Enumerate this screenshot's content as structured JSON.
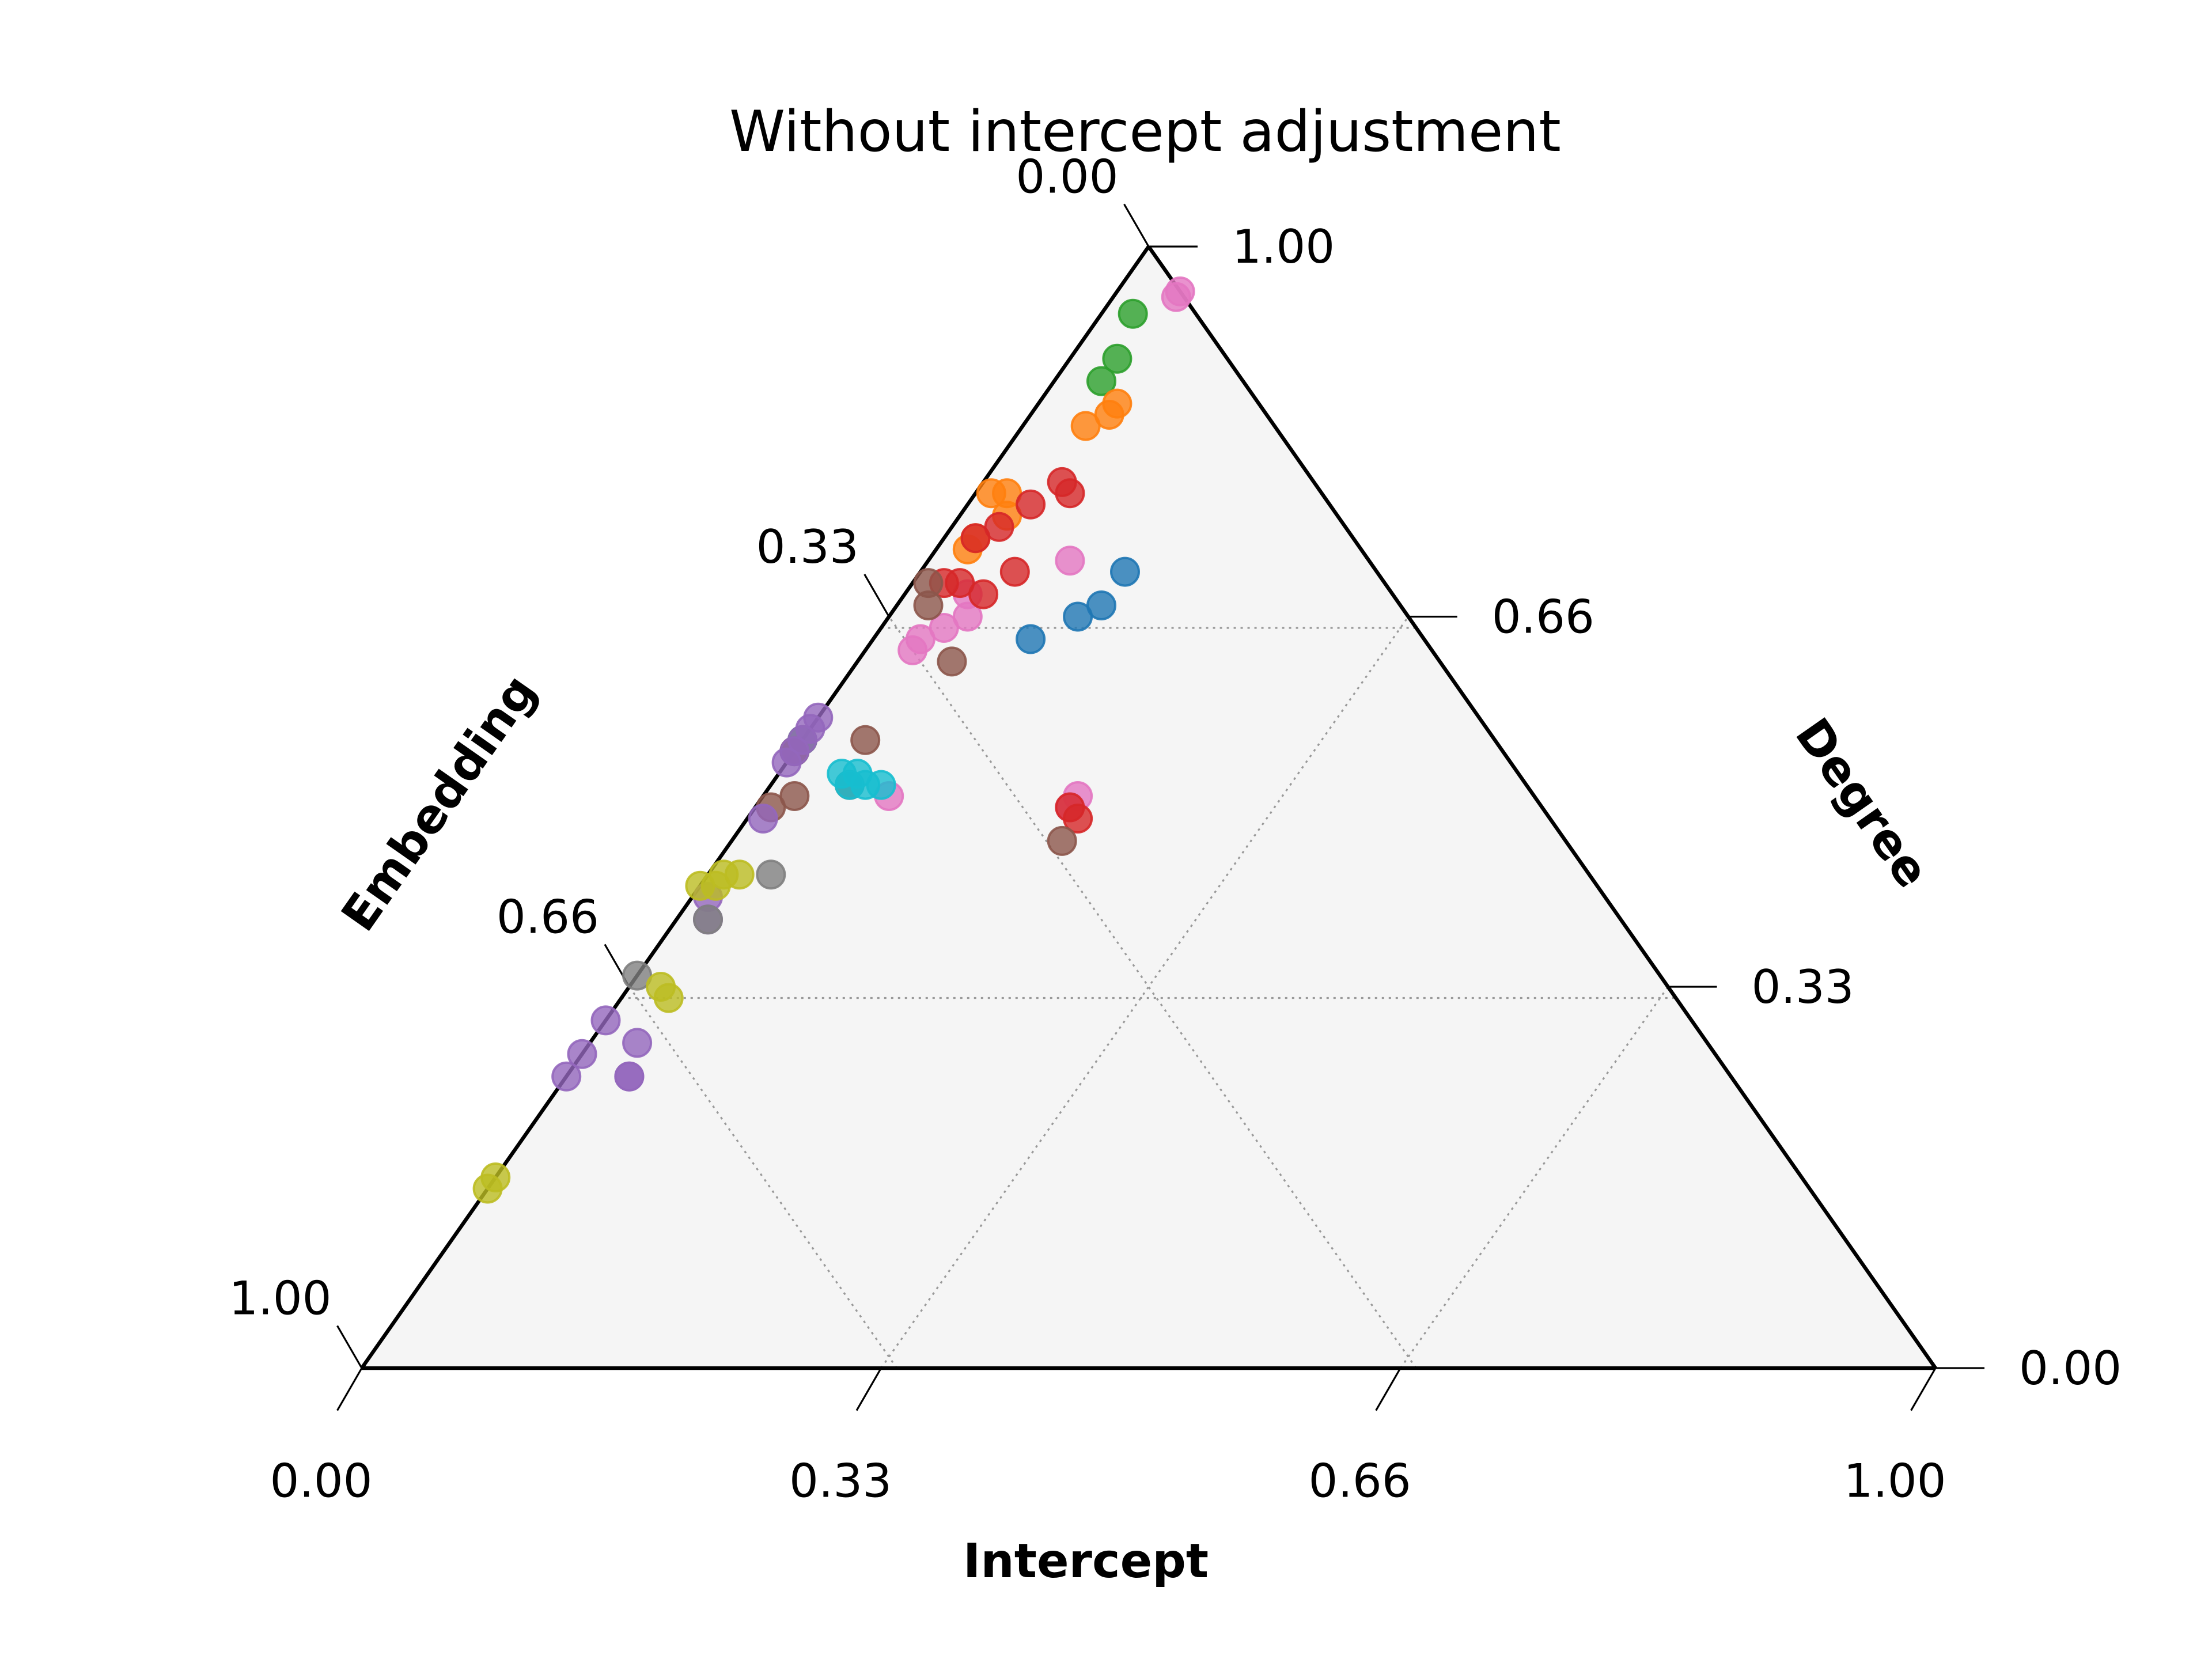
{
  "chart_data": {
    "type": "scatter",
    "subtype": "ternary",
    "title": "Without intercept adjustment",
    "axes": {
      "bottom": {
        "label": "Intercept",
        "ticks": [
          "0.00",
          "0.33",
          "0.66",
          "1.00"
        ]
      },
      "left": {
        "label": "Embedding",
        "ticks": [
          "0.00",
          "0.33",
          "0.66",
          "1.00"
        ]
      },
      "right": {
        "label": "Degree",
        "ticks": [
          "1.00",
          "0.66",
          "0.33",
          "0.00"
        ]
      }
    },
    "grid": true,
    "grid_levels": [
      0.33,
      0.66
    ],
    "background": "#f5f5f5",
    "legend": "none",
    "point_fields": [
      "intercept",
      "embedding",
      "degree"
    ],
    "series": [
      {
        "color": "#e377c2",
        "points": [
          [
            0.04,
            0.0,
            0.96
          ],
          [
            0.04,
            0.0,
            0.955
          ],
          [
            0.04,
            0.27,
            0.69
          ],
          [
            0.03,
            0.33,
            0.64
          ],
          [
            0.03,
            0.32,
            0.65
          ],
          [
            0.04,
            0.3,
            0.66
          ],
          [
            0.05,
            0.28,
            0.67
          ],
          [
            0.09,
            0.19,
            0.72
          ],
          [
            0.08,
            0.41,
            0.51
          ],
          [
            0.2,
            0.29,
            0.51
          ],
          [
            0.2,
            0.3,
            0.5
          ]
        ]
      },
      {
        "color": "#2ca02c",
        "points": [
          [
            0.02,
            0.04,
            0.94
          ],
          [
            0.03,
            0.07,
            0.9
          ],
          [
            0.03,
            0.09,
            0.88
          ],
          [
            0.0,
            0.44,
            0.56
          ],
          [
            0.0,
            0.45,
            0.55
          ]
        ]
      },
      {
        "color": "#ff7f0e",
        "points": [
          [
            0.05,
            0.09,
            0.86
          ],
          [
            0.05,
            0.1,
            0.85
          ],
          [
            0.04,
            0.12,
            0.84
          ],
          [
            0.02,
            0.24,
            0.74
          ],
          [
            0.01,
            0.21,
            0.78
          ],
          [
            0.02,
            0.2,
            0.78
          ],
          [
            0.03,
            0.21,
            0.76
          ],
          [
            0.02,
            0.25,
            0.73
          ]
        ]
      },
      {
        "color": "#d62728",
        "points": [
          [
            0.06,
            0.16,
            0.78
          ],
          [
            0.05,
            0.16,
            0.79
          ],
          [
            0.04,
            0.19,
            0.77
          ],
          [
            0.03,
            0.22,
            0.75
          ],
          [
            0.02,
            0.24,
            0.74
          ],
          [
            0.06,
            0.23,
            0.71
          ],
          [
            0.03,
            0.27,
            0.7
          ],
          [
            0.02,
            0.28,
            0.7
          ],
          [
            0.05,
            0.26,
            0.69
          ],
          [
            0.21,
            0.3,
            0.49
          ],
          [
            0.2,
            0.3,
            0.5
          ]
        ]
      },
      {
        "color": "#1f77b4",
        "points": [
          [
            0.13,
            0.16,
            0.71
          ],
          [
            0.13,
            0.19,
            0.68
          ],
          [
            0.12,
            0.21,
            0.67
          ],
          [
            0.1,
            0.25,
            0.65
          ]
        ]
      },
      {
        "color": "#8c564b",
        "points": [
          [
            0.01,
            0.29,
            0.7
          ],
          [
            0.02,
            0.3,
            0.68
          ],
          [
            0.06,
            0.31,
            0.63
          ],
          [
            0.04,
            0.4,
            0.56
          ],
          [
            0.05,
            0.43,
            0.52
          ],
          [
            0.02,
            0.47,
            0.51
          ],
          [
            0.01,
            0.49,
            0.5
          ],
          [
            0.0,
            0.45,
            0.55
          ],
          [
            0.21,
            0.32,
            0.47
          ]
        ]
      },
      {
        "color": "#17becf",
        "points": [
          [
            0.05,
            0.42,
            0.53
          ],
          [
            0.06,
            0.42,
            0.52
          ],
          [
            0.04,
            0.43,
            0.53
          ],
          [
            0.05,
            0.43,
            0.52
          ],
          [
            0.07,
            0.41,
            0.52
          ]
        ]
      },
      {
        "color": "#9467bd",
        "points": [
          [
            0.0,
            0.42,
            0.58
          ],
          [
            0.0,
            0.43,
            0.57
          ],
          [
            0.0,
            0.44,
            0.56
          ],
          [
            0.0,
            0.45,
            0.55
          ],
          [
            0.0,
            0.46,
            0.54
          ],
          [
            0.01,
            0.5,
            0.49
          ],
          [
            0.02,
            0.58,
            0.4
          ],
          [
            0.01,
            0.57,
            0.42
          ],
          [
            0.03,
            0.68,
            0.29
          ],
          [
            0.04,
            0.7,
            0.26
          ],
          [
            0.04,
            0.7,
            0.26
          ],
          [
            0.0,
            0.69,
            0.31
          ],
          [
            0.0,
            0.72,
            0.28
          ],
          [
            0.0,
            0.74,
            0.26
          ]
        ]
      },
      {
        "color": "#7f7f7f",
        "points": [
          [
            0.04,
            0.52,
            0.44
          ],
          [
            0.02,
            0.58,
            0.4
          ],
          [
            0.0,
            0.65,
            0.35
          ]
        ]
      },
      {
        "color": "#bcbd22",
        "points": [
          [
            0.02,
            0.54,
            0.44
          ],
          [
            0.01,
            0.55,
            0.44
          ],
          [
            0.01,
            0.56,
            0.43
          ],
          [
            0.0,
            0.57,
            0.43
          ],
          [
            0.02,
            0.64,
            0.34
          ],
          [
            0.03,
            0.64,
            0.33
          ],
          [
            0.0,
            0.83,
            0.17
          ],
          [
            0.0,
            0.84,
            0.16
          ]
        ]
      }
    ]
  }
}
